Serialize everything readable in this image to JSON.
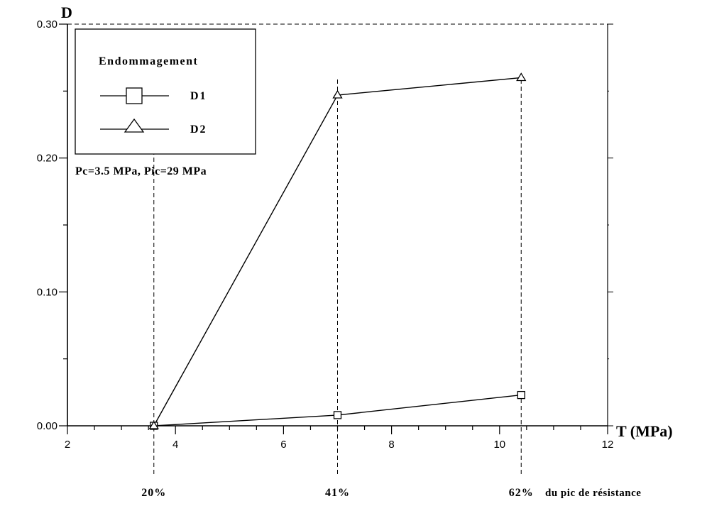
{
  "chart_data": {
    "type": "line",
    "xlabel": "T (MPa)",
    "ylabel": "D",
    "xlim": [
      2,
      12
    ],
    "ylim": [
      0,
      0.3
    ],
    "x_ticks": [
      2,
      4,
      6,
      8,
      10,
      12
    ],
    "y_ticks": [
      "0.00",
      "0.10",
      "0.20",
      "0.30"
    ],
    "x_minor_step": 0.5,
    "y_minor_step": 0.05,
    "grid": false,
    "legend": {
      "title": "Endommagement",
      "placement": "top-left",
      "entries": [
        {
          "label": "D1",
          "marker": "square"
        },
        {
          "label": "D2",
          "marker": "triangle"
        }
      ]
    },
    "annotation": "Pc=3.5 MPa, Pic=29 MPa",
    "series": [
      {
        "name": "D1",
        "marker": "square",
        "x": [
          3.6,
          7.0,
          10.4
        ],
        "y": [
          0.0,
          0.008,
          0.023
        ]
      },
      {
        "name": "D2",
        "marker": "triangle",
        "x": [
          3.6,
          7.0,
          10.4
        ],
        "y": [
          0.0,
          0.247,
          0.26
        ]
      }
    ],
    "reference_lines": [
      {
        "x": 3.6,
        "label": "20%"
      },
      {
        "x": 7.0,
        "label": "41%"
      },
      {
        "x": 10.4,
        "label": "62%"
      }
    ],
    "reference_suffix": "du pic de résistance"
  }
}
